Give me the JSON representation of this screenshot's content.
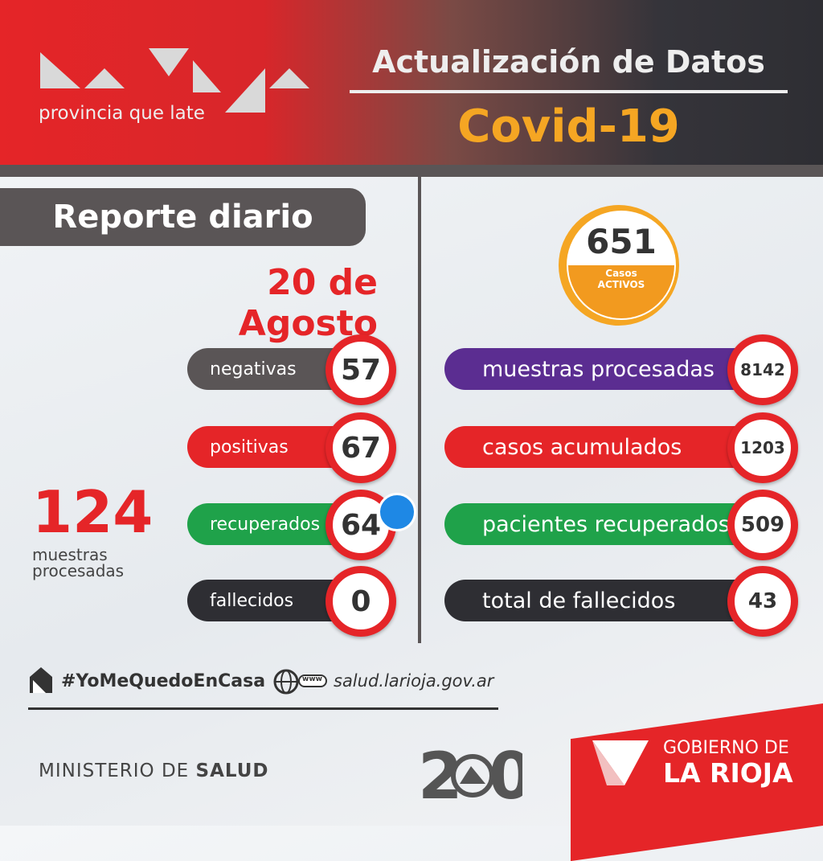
{
  "logo": {
    "tagline": "provincia que late"
  },
  "header": {
    "title": "Actualización de Datos",
    "subtitle": "Covid-19"
  },
  "report": {
    "title": "Reporte diario",
    "date": "20 de Agosto"
  },
  "active": {
    "value": "651",
    "label_top": "Casos",
    "label_bottom": "ACTIVOS"
  },
  "daily": [
    {
      "label": "negativas",
      "value": "57"
    },
    {
      "label": "positivas",
      "value": "67"
    },
    {
      "label": "recuperados",
      "value": "64"
    },
    {
      "label": "fallecidos",
      "value": "0"
    }
  ],
  "daily_total": {
    "value": "124",
    "label_top": "muestras",
    "label_bottom": "procesadas"
  },
  "cumulative": [
    {
      "label": "muestras procesadas",
      "value": "8142"
    },
    {
      "label": "casos acumulados",
      "value": "1203"
    },
    {
      "label": "pacientes recuperados",
      "value": "509"
    },
    {
      "label": "total de fallecidos",
      "value": "43"
    }
  ],
  "footer": {
    "hashtag": "#YoMeQuedoEnCasa",
    "www": "www",
    "website": "salud.larioja.gov.ar",
    "ministry_prefix": "MINISTERIO DE",
    "ministry": "SALUD",
    "government_top": "GOBIERNO DE",
    "government_bottom": "LA RIOJA"
  }
}
